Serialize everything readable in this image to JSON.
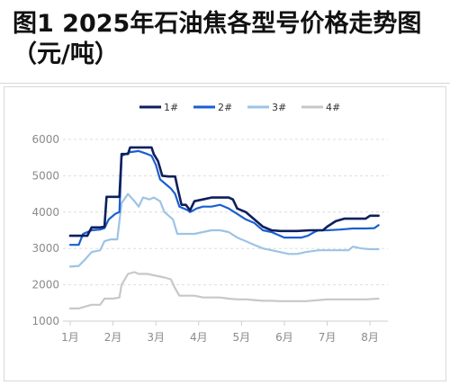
{
  "title": {
    "line1": "图1  2025年石油焦各型号价格走势图",
    "line2": "（元/吨）"
  },
  "chart_data": {
    "type": "line",
    "title": "图1  2025年石油焦各型号价格走势图（元/吨）",
    "xlabel": "",
    "ylabel": "",
    "x_ticks": [
      "1月",
      "2月",
      "3月",
      "4月",
      "5月",
      "6月",
      "7月",
      "8月"
    ],
    "y_ticks": [
      1000,
      2000,
      3000,
      4000,
      5000,
      6000
    ],
    "ylim": [
      1000,
      6000
    ],
    "xlim": [
      1.0,
      8.25
    ],
    "grid": "horizontal-dashed",
    "legend_position": "top-center",
    "series": [
      {
        "name": "1#",
        "color": "#0d1f5c",
        "points": [
          [
            1.0,
            3350
          ],
          [
            1.2,
            3350
          ],
          [
            1.4,
            3350
          ],
          [
            1.5,
            3580
          ],
          [
            1.7,
            3580
          ],
          [
            1.8,
            3600
          ],
          [
            1.85,
            4420
          ],
          [
            2.0,
            4420
          ],
          [
            2.15,
            4420
          ],
          [
            2.2,
            5600
          ],
          [
            2.35,
            5600
          ],
          [
            2.4,
            5780
          ],
          [
            2.6,
            5780
          ],
          [
            2.9,
            5780
          ],
          [
            2.95,
            5600
          ],
          [
            3.05,
            5400
          ],
          [
            3.15,
            5000
          ],
          [
            3.3,
            4980
          ],
          [
            3.45,
            4980
          ],
          [
            3.5,
            4700
          ],
          [
            3.6,
            4200
          ],
          [
            3.7,
            4200
          ],
          [
            3.8,
            4050
          ],
          [
            3.9,
            4300
          ],
          [
            4.1,
            4350
          ],
          [
            4.3,
            4400
          ],
          [
            4.5,
            4400
          ],
          [
            4.7,
            4400
          ],
          [
            4.8,
            4350
          ],
          [
            4.9,
            4100
          ],
          [
            5.1,
            4000
          ],
          [
            5.3,
            3800
          ],
          [
            5.5,
            3600
          ],
          [
            5.7,
            3500
          ],
          [
            5.9,
            3480
          ],
          [
            6.0,
            3480
          ],
          [
            6.3,
            3480
          ],
          [
            6.6,
            3500
          ],
          [
            6.9,
            3500
          ],
          [
            7.0,
            3600
          ],
          [
            7.2,
            3750
          ],
          [
            7.4,
            3820
          ],
          [
            7.6,
            3820
          ],
          [
            7.9,
            3820
          ],
          [
            8.0,
            3900
          ],
          [
            8.2,
            3900
          ]
        ]
      },
      {
        "name": "2#",
        "color": "#1a5fd0",
        "points": [
          [
            1.0,
            3100
          ],
          [
            1.2,
            3100
          ],
          [
            1.3,
            3400
          ],
          [
            1.5,
            3500
          ],
          [
            1.7,
            3520
          ],
          [
            1.8,
            3560
          ],
          [
            1.9,
            3800
          ],
          [
            2.05,
            3950
          ],
          [
            2.15,
            4000
          ],
          [
            2.2,
            5550
          ],
          [
            2.4,
            5650
          ],
          [
            2.6,
            5680
          ],
          [
            2.8,
            5600
          ],
          [
            2.9,
            5550
          ],
          [
            3.0,
            5300
          ],
          [
            3.1,
            4900
          ],
          [
            3.2,
            4800
          ],
          [
            3.35,
            4650
          ],
          [
            3.45,
            4500
          ],
          [
            3.55,
            4150
          ],
          [
            3.65,
            4100
          ],
          [
            3.75,
            4050
          ],
          [
            3.8,
            4000
          ],
          [
            3.95,
            4100
          ],
          [
            4.1,
            4150
          ],
          [
            4.3,
            4150
          ],
          [
            4.5,
            4200
          ],
          [
            4.7,
            4100
          ],
          [
            4.9,
            3950
          ],
          [
            5.1,
            3800
          ],
          [
            5.3,
            3700
          ],
          [
            5.5,
            3500
          ],
          [
            5.7,
            3450
          ],
          [
            5.9,
            3350
          ],
          [
            6.0,
            3300
          ],
          [
            6.2,
            3300
          ],
          [
            6.4,
            3300
          ],
          [
            6.55,
            3350
          ],
          [
            6.7,
            3450
          ],
          [
            6.8,
            3500
          ],
          [
            7.0,
            3500
          ],
          [
            7.3,
            3520
          ],
          [
            7.6,
            3550
          ],
          [
            7.9,
            3550
          ],
          [
            8.1,
            3560
          ],
          [
            8.2,
            3640
          ]
        ]
      },
      {
        "name": "3#",
        "color": "#9dc3e6",
        "points": [
          [
            1.0,
            2500
          ],
          [
            1.2,
            2520
          ],
          [
            1.35,
            2700
          ],
          [
            1.5,
            2900
          ],
          [
            1.7,
            2950
          ],
          [
            1.8,
            3200
          ],
          [
            1.95,
            3250
          ],
          [
            2.1,
            3250
          ],
          [
            2.2,
            4250
          ],
          [
            2.35,
            4500
          ],
          [
            2.5,
            4300
          ],
          [
            2.6,
            4150
          ],
          [
            2.7,
            4400
          ],
          [
            2.85,
            4350
          ],
          [
            2.95,
            4400
          ],
          [
            3.1,
            4300
          ],
          [
            3.2,
            4000
          ],
          [
            3.3,
            3900
          ],
          [
            3.4,
            3800
          ],
          [
            3.5,
            3400
          ],
          [
            3.7,
            3400
          ],
          [
            3.9,
            3400
          ],
          [
            4.1,
            3450
          ],
          [
            4.3,
            3500
          ],
          [
            4.5,
            3500
          ],
          [
            4.7,
            3450
          ],
          [
            4.9,
            3300
          ],
          [
            5.1,
            3200
          ],
          [
            5.3,
            3100
          ],
          [
            5.5,
            3000
          ],
          [
            5.7,
            2950
          ],
          [
            5.9,
            2900
          ],
          [
            6.1,
            2850
          ],
          [
            6.3,
            2850
          ],
          [
            6.5,
            2900
          ],
          [
            6.8,
            2950
          ],
          [
            7.0,
            2950
          ],
          [
            7.3,
            2950
          ],
          [
            7.5,
            2950
          ],
          [
            7.6,
            3050
          ],
          [
            7.8,
            3000
          ],
          [
            8.0,
            2980
          ],
          [
            8.2,
            2980
          ]
        ]
      },
      {
        "name": "4#",
        "color": "#c8c8c8",
        "points": [
          [
            1.0,
            1350
          ],
          [
            1.2,
            1350
          ],
          [
            1.35,
            1400
          ],
          [
            1.5,
            1450
          ],
          [
            1.7,
            1450
          ],
          [
            1.8,
            1620
          ],
          [
            2.0,
            1620
          ],
          [
            2.15,
            1650
          ],
          [
            2.2,
            2000
          ],
          [
            2.35,
            2300
          ],
          [
            2.5,
            2350
          ],
          [
            2.6,
            2300
          ],
          [
            2.8,
            2300
          ],
          [
            3.0,
            2250
          ],
          [
            3.2,
            2200
          ],
          [
            3.35,
            2150
          ],
          [
            3.45,
            1900
          ],
          [
            3.55,
            1700
          ],
          [
            3.7,
            1700
          ],
          [
            3.9,
            1700
          ],
          [
            4.1,
            1650
          ],
          [
            4.3,
            1650
          ],
          [
            4.5,
            1650
          ],
          [
            4.7,
            1620
          ],
          [
            4.9,
            1600
          ],
          [
            5.1,
            1600
          ],
          [
            5.3,
            1580
          ],
          [
            5.5,
            1560
          ],
          [
            5.7,
            1560
          ],
          [
            5.9,
            1550
          ],
          [
            6.1,
            1550
          ],
          [
            6.3,
            1550
          ],
          [
            6.5,
            1550
          ],
          [
            6.8,
            1580
          ],
          [
            7.0,
            1600
          ],
          [
            7.3,
            1600
          ],
          [
            7.6,
            1600
          ],
          [
            7.9,
            1600
          ],
          [
            8.2,
            1620
          ]
        ]
      }
    ]
  }
}
